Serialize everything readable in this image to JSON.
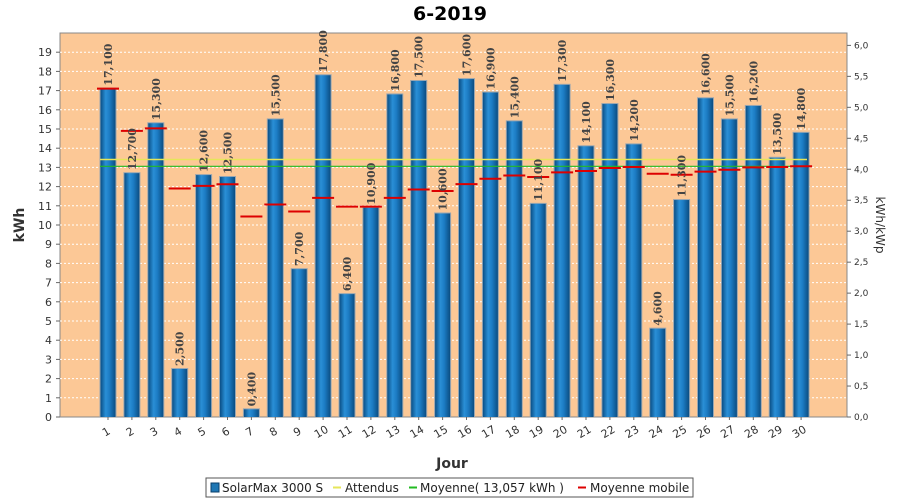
{
  "chart_data": {
    "type": "bar",
    "title": "6-2019",
    "xlabel": "Jour",
    "ylabel": "kWh",
    "ylabel_right": "kWh/kWp",
    "ylim": [
      0,
      20
    ],
    "ylim_right": [
      0,
      6.2
    ],
    "y_ticks": [
      "0",
      "1",
      "2",
      "3",
      "4",
      "5",
      "6",
      "7",
      "8",
      "9",
      "10",
      "11",
      "12",
      "13",
      "14",
      "15",
      "16",
      "17",
      "18",
      "19"
    ],
    "y_ticks_right": [
      "0,0",
      "0,5",
      "1,0",
      "1,5",
      "2,0",
      "2,5",
      "3,0",
      "3,5",
      "4,0",
      "4,5",
      "5,0",
      "5,5",
      "6,0"
    ],
    "categories": [
      "1",
      "2",
      "3",
      "4",
      "5",
      "6",
      "7",
      "8",
      "9",
      "10",
      "11",
      "12",
      "13",
      "14",
      "15",
      "16",
      "17",
      "18",
      "19",
      "20",
      "21",
      "22",
      "23",
      "24",
      "25",
      "26",
      "27",
      "28",
      "29",
      "30"
    ],
    "series": [
      {
        "name": "SolarMax 3000 S",
        "values": [
          17.1,
          12.7,
          15.3,
          2.5,
          12.6,
          12.5,
          0.4,
          15.5,
          7.7,
          17.8,
          6.4,
          10.9,
          16.8,
          17.5,
          10.6,
          17.6,
          16.9,
          15.4,
          11.1,
          17.3,
          14.1,
          16.3,
          14.2,
          4.6,
          11.3,
          16.6,
          15.5,
          16.2,
          13.5,
          14.8
        ],
        "labels": [
          "17,100",
          "12,700",
          "15,300",
          "2,500",
          "12,600",
          "12,500",
          "0,400",
          "15,500",
          "7,700",
          "17,800",
          "6,400",
          "10,900",
          "16,800",
          "17,500",
          "10,600",
          "17,600",
          "16,900",
          "15,400",
          "11,100",
          "17,300",
          "14,100",
          "16,300",
          "14,200",
          "4,600",
          "11,300",
          "16,600",
          "15,500",
          "16,200",
          "13,500",
          "14,800"
        ],
        "color": "#1f77b4"
      },
      {
        "name": "Moyenne mobile",
        "values": [
          17.1,
          14.9,
          15.03,
          11.9,
          12.04,
          12.12,
          10.44,
          11.07,
          10.7,
          11.41,
          10.96,
          10.96,
          11.41,
          11.85,
          11.77,
          12.13,
          12.41,
          12.58,
          12.5,
          12.74,
          12.81,
          12.97,
          13.02,
          12.67,
          12.62,
          12.78,
          12.88,
          13.0,
          13.02,
          13.06
        ],
        "color": "#dd0000"
      },
      {
        "name": "Moyenne( 13,057 kWh )",
        "value": 13.057,
        "color": "#22bb22"
      },
      {
        "name": "Attendus",
        "value": 13.2,
        "color": "#e6e65a"
      }
    ],
    "legend_position": "bottom",
    "grid": true
  }
}
